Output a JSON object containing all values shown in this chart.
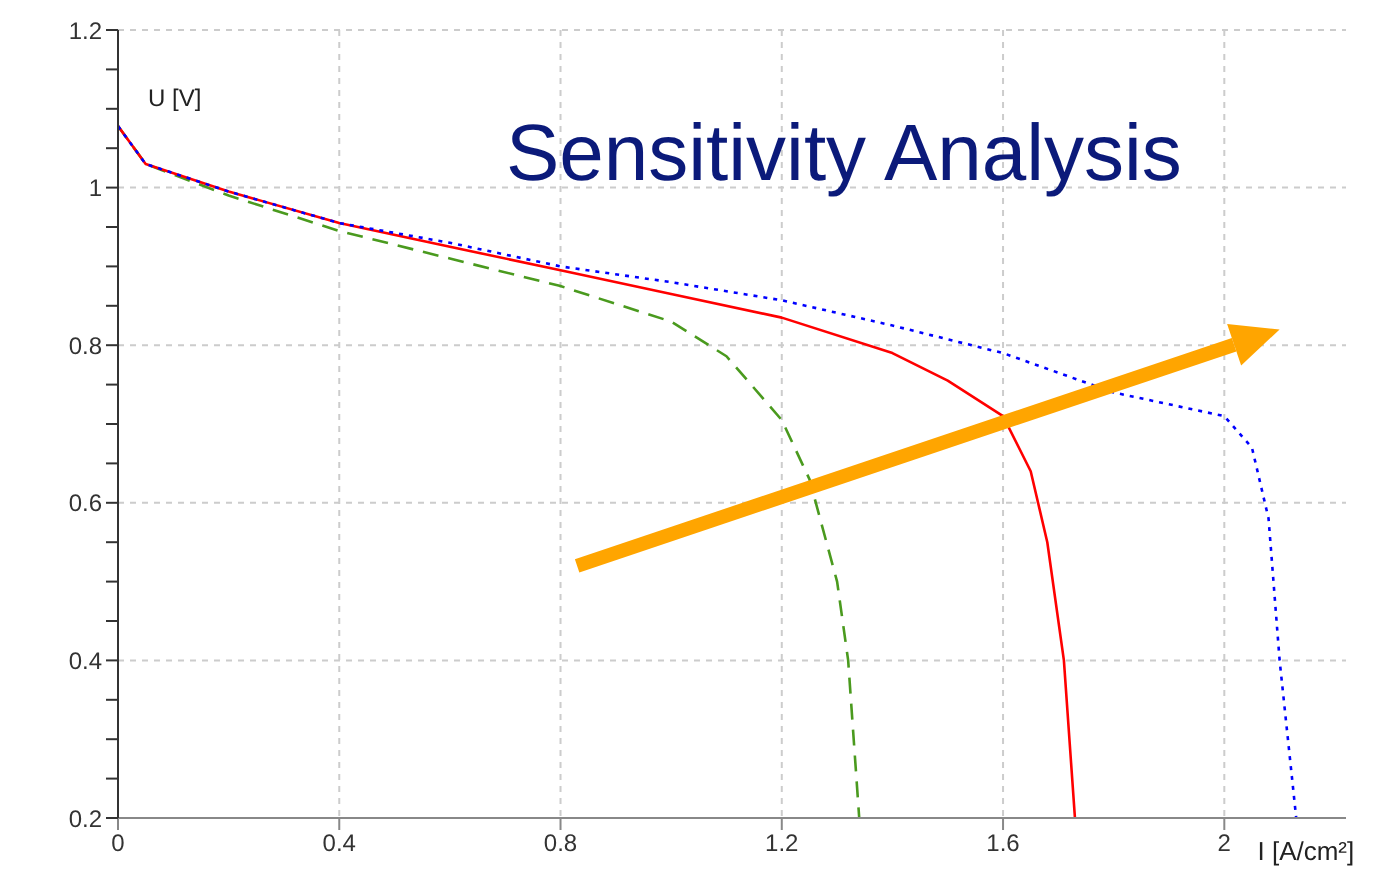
{
  "chart_data": {
    "type": "line",
    "title": "Sensitivity Analysis",
    "xlabel": "I [A/cm²]",
    "ylabel": "U [V]",
    "xlim": [
      0,
      2.22
    ],
    "xticks": [
      0,
      0.4,
      0.8,
      1.2,
      1.6,
      2
    ],
    "ylim": [
      0.2,
      1.2
    ],
    "yticks": [
      0.2,
      {
        "value": 0.25,
        "label": null
      },
      {
        "value": 0.3,
        "label": null
      },
      {
        "value": 0.35,
        "label": null
      },
      0.4,
      {
        "value": 0.45,
        "label": null
      },
      {
        "value": 0.5,
        "label": null
      },
      {
        "value": 0.55,
        "label": null
      },
      0.6,
      {
        "value": 0.65,
        "label": null
      },
      {
        "value": 0.7,
        "label": null
      },
      {
        "value": 0.75,
        "label": null
      },
      0.8,
      {
        "value": 0.85,
        "label": null
      },
      {
        "value": 0.9,
        "label": null
      },
      {
        "value": 0.95,
        "label": null
      },
      1,
      {
        "value": 1.05,
        "label": null
      },
      {
        "value": 1.1,
        "label": null
      },
      {
        "value": 1.15,
        "label": null
      },
      1.2
    ],
    "grid": true,
    "marker": "none",
    "series": [
      {
        "color": "#4a9a1e",
        "line_style": "dashed",
        "x": [
          0,
          0.05,
          0.2,
          0.4,
          0.6,
          0.8,
          1.0,
          1.1,
          1.2,
          1.25,
          1.3,
          1.32,
          1.34
        ],
        "values": [
          1.078,
          1.03,
          0.99,
          0.945,
          0.91,
          0.875,
          0.83,
          0.786,
          0.705,
          0.63,
          0.5,
          0.4,
          0.2
        ]
      },
      {
        "color": "#ff0000",
        "line_style": "solid",
        "x": [
          0,
          0.05,
          0.2,
          0.4,
          0.6,
          0.8,
          1.0,
          1.2,
          1.4,
          1.5,
          1.6,
          1.65,
          1.68,
          1.71,
          1.73
        ],
        "values": [
          1.078,
          1.03,
          0.995,
          0.955,
          0.925,
          0.895,
          0.865,
          0.835,
          0.79,
          0.755,
          0.71,
          0.64,
          0.55,
          0.4,
          0.2
        ]
      },
      {
        "color": "#0000ff",
        "line_style": "dotted",
        "x": [
          0,
          0.05,
          0.2,
          0.4,
          0.6,
          0.8,
          1.0,
          1.2,
          1.4,
          1.6,
          1.8,
          2.0,
          2.05,
          2.08,
          2.1,
          2.13
        ],
        "values": [
          1.078,
          1.03,
          0.995,
          0.955,
          0.93,
          0.9,
          0.88,
          0.857,
          0.825,
          0.79,
          0.74,
          0.71,
          0.67,
          0.58,
          0.4,
          0.2
        ]
      }
    ]
  }
}
